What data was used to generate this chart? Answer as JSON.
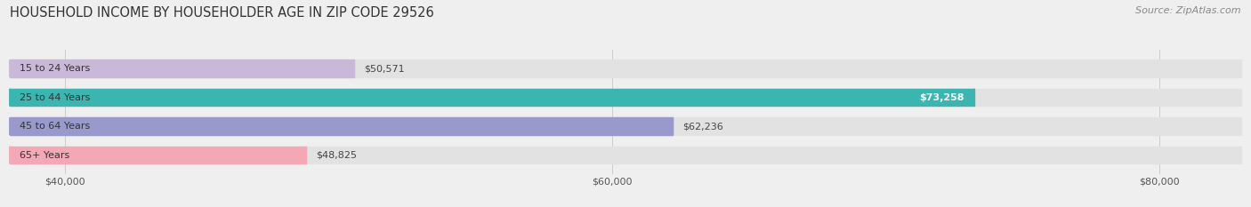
{
  "title": "HOUSEHOLD INCOME BY HOUSEHOLDER AGE IN ZIP CODE 29526",
  "source": "Source: ZipAtlas.com",
  "categories": [
    "15 to 24 Years",
    "25 to 44 Years",
    "45 to 64 Years",
    "65+ Years"
  ],
  "values": [
    50571,
    73258,
    62236,
    48825
  ],
  "bar_colors": [
    "#c9b8d8",
    "#3ab5b0",
    "#9999cc",
    "#f4a7b5"
  ],
  "bar_labels": [
    "$50,571",
    "$73,258",
    "$62,236",
    "$48,825"
  ],
  "label_inside": [
    false,
    true,
    false,
    false
  ],
  "x_min": 38000,
  "x_max": 83000,
  "x_ticks": [
    40000,
    60000,
    80000
  ],
  "x_tick_labels": [
    "$40,000",
    "$60,000",
    "$80,000"
  ],
  "background_color": "#efefef",
  "bar_bg_color": "#e2e2e2",
  "title_fontsize": 10.5,
  "source_fontsize": 8,
  "label_fontsize": 8,
  "tick_fontsize": 8,
  "cat_fontsize": 8
}
